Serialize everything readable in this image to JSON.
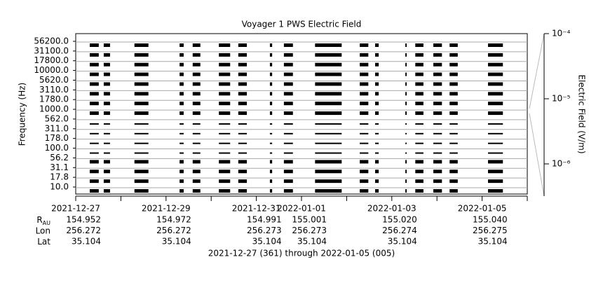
{
  "chart_data": {
    "type": "intervals",
    "title": "Voyager 1 PWS Electric Field",
    "y_label": "Frequency (Hz)",
    "y2_label": "Electric Field (V/m)",
    "categories": [
      "10.0",
      "17.8",
      "31.1",
      "56.2",
      "100.0",
      "178.0",
      "311.0",
      "562.0",
      "1000.0",
      "1780.0",
      "3110.0",
      "5620.0",
      "10000.0",
      "17800.0",
      "31100.0",
      "56200.0"
    ],
    "xlim": [
      0,
      10
    ],
    "xticks": [
      {
        "value": 0,
        "label": "2021-12-27"
      },
      {
        "value": 2,
        "label": "2021-12-29"
      },
      {
        "value": 4,
        "label": "2021-12-31"
      },
      {
        "value": 5,
        "label": "2022-01-01"
      },
      {
        "value": 7,
        "label": "2022-01-03"
      },
      {
        "value": 9,
        "label": "2022-01-05"
      }
    ],
    "xminorticks": [
      1,
      3,
      6,
      8,
      10
    ],
    "intervals": [
      [
        0.31,
        0.51
      ],
      [
        0.62,
        0.76
      ],
      [
        1.3,
        1.61
      ],
      [
        2.3,
        2.39
      ],
      [
        2.59,
        2.76
      ],
      [
        3.17,
        3.42
      ],
      [
        3.6,
        3.79
      ],
      [
        4.3,
        4.35
      ],
      [
        4.61,
        4.81
      ],
      [
        5.3,
        5.89
      ],
      [
        6.29,
        6.48
      ],
      [
        6.63,
        6.71
      ],
      [
        7.3,
        7.33
      ],
      [
        7.52,
        7.7
      ],
      [
        7.92,
        8.11
      ],
      [
        8.28,
        8.46
      ],
      [
        9.13,
        9.46
      ]
    ],
    "color": "#000000",
    "grid": true,
    "y2_log": true,
    "y2lim": [
      3.2e-07,
      0.0001
    ],
    "y2ticks": [
      {
        "value": 0.0001,
        "label": "10⁻⁴"
      },
      {
        "value": 1e-05,
        "label": "10⁻⁵"
      },
      {
        "value": 1e-06,
        "label": "10⁻⁶"
      }
    ],
    "ephemeris": {
      "rows": [
        {
          "label": "R",
          "sub": "AU",
          "values": [
            "154.952",
            "154.972",
            "154.991",
            "155.001",
            "155.020",
            "155.040"
          ]
        },
        {
          "label": "Lon",
          "values": [
            "256.272",
            "256.272",
            "256.273",
            "256.273",
            "256.274",
            "256.275"
          ]
        },
        {
          "label": "Lat",
          "values": [
            "35.104",
            "35.104",
            "35.104",
            "35.104",
            "35.104",
            "35.104"
          ]
        }
      ]
    },
    "footer": "2021-12-27 (361) through 2022-01-05 (005)"
  }
}
